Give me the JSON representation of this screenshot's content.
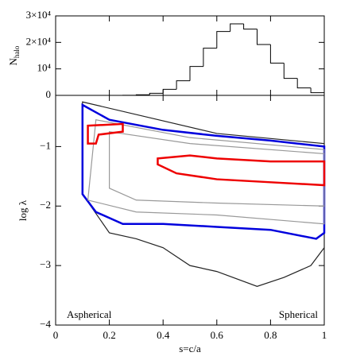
{
  "chart_data": [
    {
      "type": "histogram",
      "ylabel": "N",
      "ylabel_subscript": "halo",
      "bins": [
        0.1,
        0.15,
        0.2,
        0.25,
        0.3,
        0.35,
        0.4,
        0.45,
        0.5,
        0.55,
        0.6,
        0.65,
        0.7,
        0.75,
        0.8,
        0.85,
        0.9,
        0.95,
        1.0
      ],
      "counts": [
        0,
        2,
        11,
        55,
        232,
        800,
        2300,
        5500,
        10900,
        17800,
        24100,
        27000,
        25000,
        19200,
        12200,
        6400,
        2800,
        1000
      ],
      "color": "#000000",
      "xlim": [
        0,
        1
      ],
      "xticks": [
        0,
        0.2,
        0.4,
        0.6,
        0.8,
        1
      ],
      "ylim": [
        0,
        30000
      ],
      "yticks": [
        0,
        {
          "value": 10000,
          "label": "10⁴"
        },
        {
          "value": 20000,
          "label": "2×10⁴"
        },
        {
          "value": 30000,
          "label": "3×10⁴"
        }
      ]
    },
    {
      "type": "contour",
      "xlabel": "s=c/a",
      "ylabel": "log λ",
      "annotations": [
        "Aspherical",
        "Spherical"
      ],
      "xlim": [
        0,
        1
      ],
      "xticks": [
        0,
        0.2,
        0.4,
        0.6,
        0.8,
        1
      ],
      "ylim": [
        -4,
        -0.14
      ],
      "yticks": [
        {
          "value": -1,
          "label": "−1"
        },
        {
          "value": -2,
          "label": "−2"
        },
        {
          "value": -3,
          "label": "−3"
        },
        {
          "value": -4,
          "label": "−4"
        }
      ],
      "series": [
        {
          "color": "#222222",
          "x": [
            0.1,
            0.6,
            1.0,
            1.0,
            0.95,
            0.85,
            0.75,
            0.6,
            0.5,
            0.4,
            0.3,
            0.2,
            0.1
          ],
          "y": [
            -0.25,
            -0.78,
            -0.95,
            -2.7,
            -3.0,
            -3.2,
            -3.35,
            -3.1,
            -3.0,
            -2.7,
            -2.55,
            -2.45,
            -1.8
          ]
        },
        {
          "color": "#0000dd",
          "x": [
            0.1,
            0.2,
            0.4,
            0.6,
            0.8,
            1.0,
            1.0,
            0.97,
            0.8,
            0.6,
            0.4,
            0.25,
            0.15,
            0.1
          ],
          "y": [
            -0.3,
            -0.55,
            -0.72,
            -0.82,
            -0.9,
            -1.0,
            -2.45,
            -2.55,
            -2.4,
            -2.35,
            -2.3,
            -2.3,
            -2.1,
            -1.8
          ]
        },
        {
          "color": "#999999",
          "x": [
            0.15,
            0.5,
            1.0,
            1.0,
            0.6,
            0.3,
            0.12
          ],
          "y": [
            -0.55,
            -0.85,
            -1.05,
            -2.3,
            -2.15,
            -2.1,
            -1.9
          ]
        },
        {
          "color": "#999999",
          "x": [
            0.2,
            0.5,
            1.0,
            1.0,
            0.6,
            0.3,
            0.2
          ],
          "y": [
            -0.75,
            -0.95,
            -1.12,
            -2.0,
            -1.95,
            -1.9,
            -1.7
          ]
        },
        {
          "color": "#ee0000",
          "x": [
            0.12,
            0.25,
            0.25,
            0.16,
            0.15,
            0.12
          ],
          "y": [
            -0.65,
            -0.62,
            -0.75,
            -0.8,
            -0.95,
            -0.95
          ]
        },
        {
          "color": "#ee0000",
          "x": [
            0.38,
            0.5,
            0.6,
            0.8,
            1.0,
            1.0,
            0.8,
            0.6,
            0.45,
            0.38
          ],
          "y": [
            -1.2,
            -1.15,
            -1.2,
            -1.25,
            -1.25,
            -1.65,
            -1.6,
            -1.55,
            -1.45,
            -1.3
          ]
        }
      ]
    }
  ]
}
